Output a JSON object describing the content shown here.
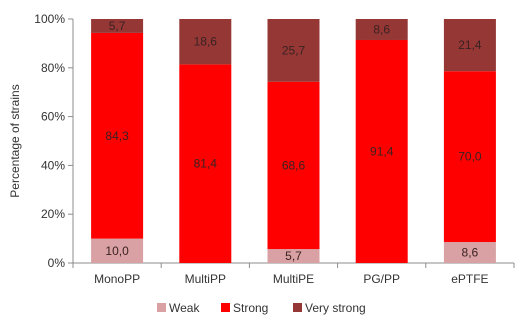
{
  "chart_data": {
    "type": "bar",
    "stacked": true,
    "categories": [
      "MonoPP",
      "MultiPP",
      "MultiPE",
      "PG/PP",
      "ePTFE"
    ],
    "series": [
      {
        "name": "Weak",
        "color": "#d9a1a3",
        "values": [
          10.0,
          0,
          5.7,
          0,
          8.6
        ],
        "labels": [
          "10,0",
          "",
          "5,7",
          "",
          "8,6"
        ]
      },
      {
        "name": "Strong",
        "color": "#ff0000",
        "values": [
          84.3,
          81.4,
          68.6,
          91.4,
          70.0
        ],
        "labels": [
          "84,3",
          "81,4",
          "68,6",
          "91,4",
          "70,0"
        ]
      },
      {
        "name": "Very strong",
        "color": "#953735",
        "values": [
          5.7,
          18.6,
          25.7,
          8.6,
          21.4
        ],
        "labels": [
          "5,7",
          "18,6",
          "25,7",
          "8,6",
          "21,4"
        ]
      }
    ],
    "ylabel": "Percentage of strains",
    "ylim": [
      0,
      100
    ],
    "yticks": [
      0,
      20,
      40,
      60,
      80,
      100
    ],
    "ytick_labels": [
      "0%",
      "20%",
      "40%",
      "60%",
      "80%",
      "100%"
    ],
    "grid": false,
    "legend": "bottom"
  }
}
